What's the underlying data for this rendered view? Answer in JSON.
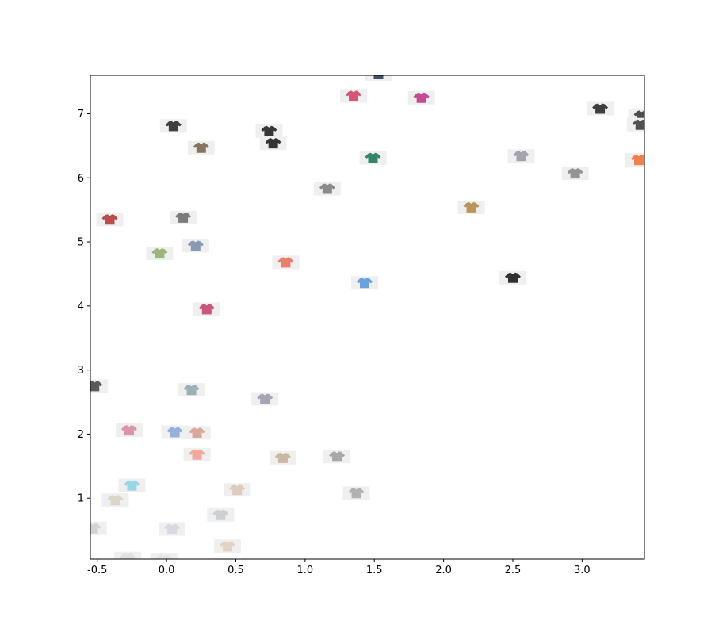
{
  "chart_data": {
    "type": "scatter",
    "title": "",
    "xlabel": "",
    "ylabel": "",
    "xlim": [
      -0.55,
      3.45
    ],
    "ylim": [
      0.05,
      7.6
    ],
    "grid": false,
    "x_ticks": [
      "-0.5",
      "0.0",
      "0.5",
      "1.0",
      "1.5",
      "2.0",
      "2.5",
      "3.0"
    ],
    "y_ticks": [
      "1",
      "2",
      "3",
      "4",
      "5",
      "6",
      "7"
    ],
    "x_tick_values": [
      -0.5,
      0.0,
      0.5,
      1.0,
      1.5,
      2.0,
      2.5,
      3.0
    ],
    "y_tick_values": [
      1,
      2,
      3,
      4,
      5,
      6,
      7
    ],
    "points": [
      {
        "x": 1.53,
        "y": 7.62,
        "icon": "dark-hoodie-icon",
        "color": "#2d3e55"
      },
      {
        "x": 1.35,
        "y": 7.28,
        "icon": "pink-top-icon",
        "color": "#d1456b"
      },
      {
        "x": 1.84,
        "y": 7.25,
        "icon": "floral-jacket-icon",
        "color": "#c0398a"
      },
      {
        "x": 0.05,
        "y": 6.81,
        "icon": "black-cap-icon",
        "color": "#2b2b2b"
      },
      {
        "x": 0.74,
        "y": 6.73,
        "icon": "black-tshirt-icon",
        "color": "#222222"
      },
      {
        "x": 0.77,
        "y": 6.54,
        "icon": "black-stack-icon",
        "color": "#1f1f1f"
      },
      {
        "x": 0.25,
        "y": 6.47,
        "icon": "plaid-shirt-icon",
        "color": "#7a6650"
      },
      {
        "x": 3.13,
        "y": 7.08,
        "icon": "black-crop-icon",
        "color": "#2a2a2a"
      },
      {
        "x": 3.43,
        "y": 6.97,
        "icon": "black-jacket-icon",
        "color": "#3a3a3a"
      },
      {
        "x": 3.42,
        "y": 6.83,
        "icon": "black-scarf-icon",
        "color": "#3f3f3f"
      },
      {
        "x": 1.49,
        "y": 6.31,
        "icon": "green-floral-icon",
        "color": "#1f7a5c"
      },
      {
        "x": 2.56,
        "y": 6.34,
        "icon": "grey-sweater-icon",
        "color": "#9a9aa6"
      },
      {
        "x": 3.41,
        "y": 6.28,
        "icon": "orange-top-icon",
        "color": "#f0733a"
      },
      {
        "x": 2.95,
        "y": 6.07,
        "icon": "grey-tee-icon",
        "color": "#8a8a8a"
      },
      {
        "x": 1.16,
        "y": 5.83,
        "icon": "grey-tshirt-icon",
        "color": "#7f7f7f"
      },
      {
        "x": 2.2,
        "y": 5.54,
        "icon": "gold-top-icon",
        "color": "#b58b4a"
      },
      {
        "x": -0.41,
        "y": 5.35,
        "icon": "red-tank-icon",
        "color": "#b23a3a"
      },
      {
        "x": 0.12,
        "y": 5.38,
        "icon": "grey-shirt-icon",
        "color": "#6e6e6e"
      },
      {
        "x": 0.21,
        "y": 4.94,
        "icon": "denim-top-icon",
        "color": "#7b8fad"
      },
      {
        "x": -0.05,
        "y": 4.82,
        "icon": "green-blouse-icon",
        "color": "#8fb06c"
      },
      {
        "x": 0.86,
        "y": 4.68,
        "icon": "coral-blouse-icon",
        "color": "#e9705d"
      },
      {
        "x": 1.43,
        "y": 4.36,
        "icon": "blue-sweater-icon",
        "color": "#5b9ad8"
      },
      {
        "x": 2.5,
        "y": 4.44,
        "icon": "black-bralette-icon",
        "color": "#1d1d1d"
      },
      {
        "x": 0.29,
        "y": 3.95,
        "icon": "pink-floral-icon",
        "color": "#c24470"
      },
      {
        "x": -0.52,
        "y": 2.75,
        "icon": "grey-jacket-icon",
        "color": "#4a4a4a"
      },
      {
        "x": 0.18,
        "y": 2.69,
        "icon": "sage-sweater-icon",
        "color": "#93a8ad"
      },
      {
        "x": 0.71,
        "y": 2.55,
        "icon": "grey-pullover-icon",
        "color": "#9d9dab"
      },
      {
        "x": -0.27,
        "y": 2.06,
        "icon": "pink-shirt-icon",
        "color": "#d88aa0"
      },
      {
        "x": 0.06,
        "y": 2.03,
        "icon": "blue-blouse-icon",
        "color": "#8aa8d8"
      },
      {
        "x": 0.22,
        "y": 2.02,
        "icon": "rose-floral-icon",
        "color": "#d4a090"
      },
      {
        "x": 0.22,
        "y": 1.68,
        "icon": "peach-tee-icon",
        "color": "#f2a090"
      },
      {
        "x": 0.84,
        "y": 1.63,
        "icon": "beige-tee-icon",
        "color": "#c4b29a"
      },
      {
        "x": 1.23,
        "y": 1.65,
        "icon": "grey-knit-icon",
        "color": "#a0a0a0"
      },
      {
        "x": -0.25,
        "y": 1.2,
        "icon": "light-blue-tee-icon",
        "color": "#8fd2e8"
      },
      {
        "x": 0.51,
        "y": 1.13,
        "icon": "cream-blouse-icon",
        "color": "#d8c8b8"
      },
      {
        "x": 1.37,
        "y": 1.08,
        "icon": "grey-crop-icon",
        "color": "#aaaaaa"
      },
      {
        "x": -0.37,
        "y": 0.97,
        "icon": "cream-shirt-icon",
        "color": "#d9d2c5"
      },
      {
        "x": 0.39,
        "y": 0.74,
        "icon": "white-tee-icon",
        "color": "#c8ccd0"
      },
      {
        "x": -0.53,
        "y": 0.53,
        "icon": "white-top-icon",
        "color": "#cfcfcf"
      },
      {
        "x": 0.04,
        "y": 0.52,
        "icon": "white-sweater-icon",
        "color": "#d6d6e0"
      },
      {
        "x": 0.44,
        "y": 0.25,
        "icon": "beige-sweater-icon",
        "color": "#e0d0c0"
      },
      {
        "x": -0.28,
        "y": 0.06,
        "icon": "white-blouse-icon",
        "color": "#dedede"
      },
      {
        "x": -0.02,
        "y": 0.04,
        "icon": "white-shirt-icon",
        "color": "#e4e4e4"
      }
    ]
  }
}
